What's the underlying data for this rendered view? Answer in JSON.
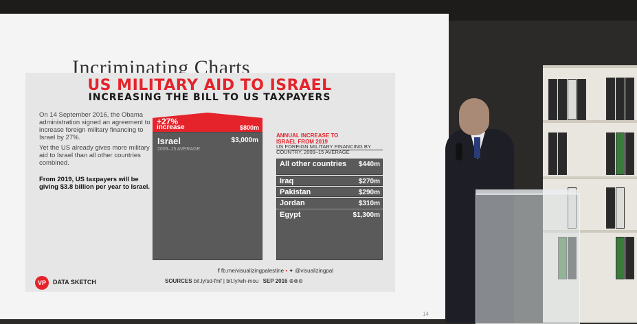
{
  "screen": {
    "title": "Incriminating Charts",
    "page_number": "14"
  },
  "slide": {
    "title": "US MILITARY AID TO ISRAEL",
    "subtitle": "INCREASING THE BILL TO US TAXPAYERS",
    "paragraph1": "On 14 September 2016, the Obama administration signed an agreement to increase foreign military financing to Israel by 27%.",
    "paragraph2": "Yet the US already gives more military aid to Israel than all other countries combined.",
    "paragraph3": "From 2019, US taxpayers will be giving $3.8 billion per year to Israel.",
    "israel": {
      "increase_pct": "+27%",
      "increase_label": "increase",
      "increase_value": "$800m",
      "name": "Israel",
      "avg_label": "2009–15 AVERAGE",
      "value": "$3,000m"
    },
    "annual_increase_title": "ANNUAL INCREASE TO ISRAEL FROM 2019",
    "chart_subtitle": "US FOREIGN MILITARY FINANCING BY COUNTRY, 2009–15 AVERAGE",
    "countries": [
      {
        "name": "All other countries",
        "value": "$440m"
      },
      {
        "name": "Iraq",
        "value": "$270m"
      },
      {
        "name": "Pakistan",
        "value": "$290m"
      },
      {
        "name": "Jordan",
        "value": "$310m"
      },
      {
        "name": "Egypt",
        "value": "$1,300m"
      }
    ],
    "footer": {
      "facebook": "fb.me/visualizingpalestine",
      "twitter": "@visualizingpal",
      "sources_label": "SOURCES",
      "sources": "bit.ly/sd-fmf | bit.ly/wh-mou",
      "date": "SEP 2016",
      "logo": "VP",
      "brand": "DATA SKETCH"
    }
  }
}
